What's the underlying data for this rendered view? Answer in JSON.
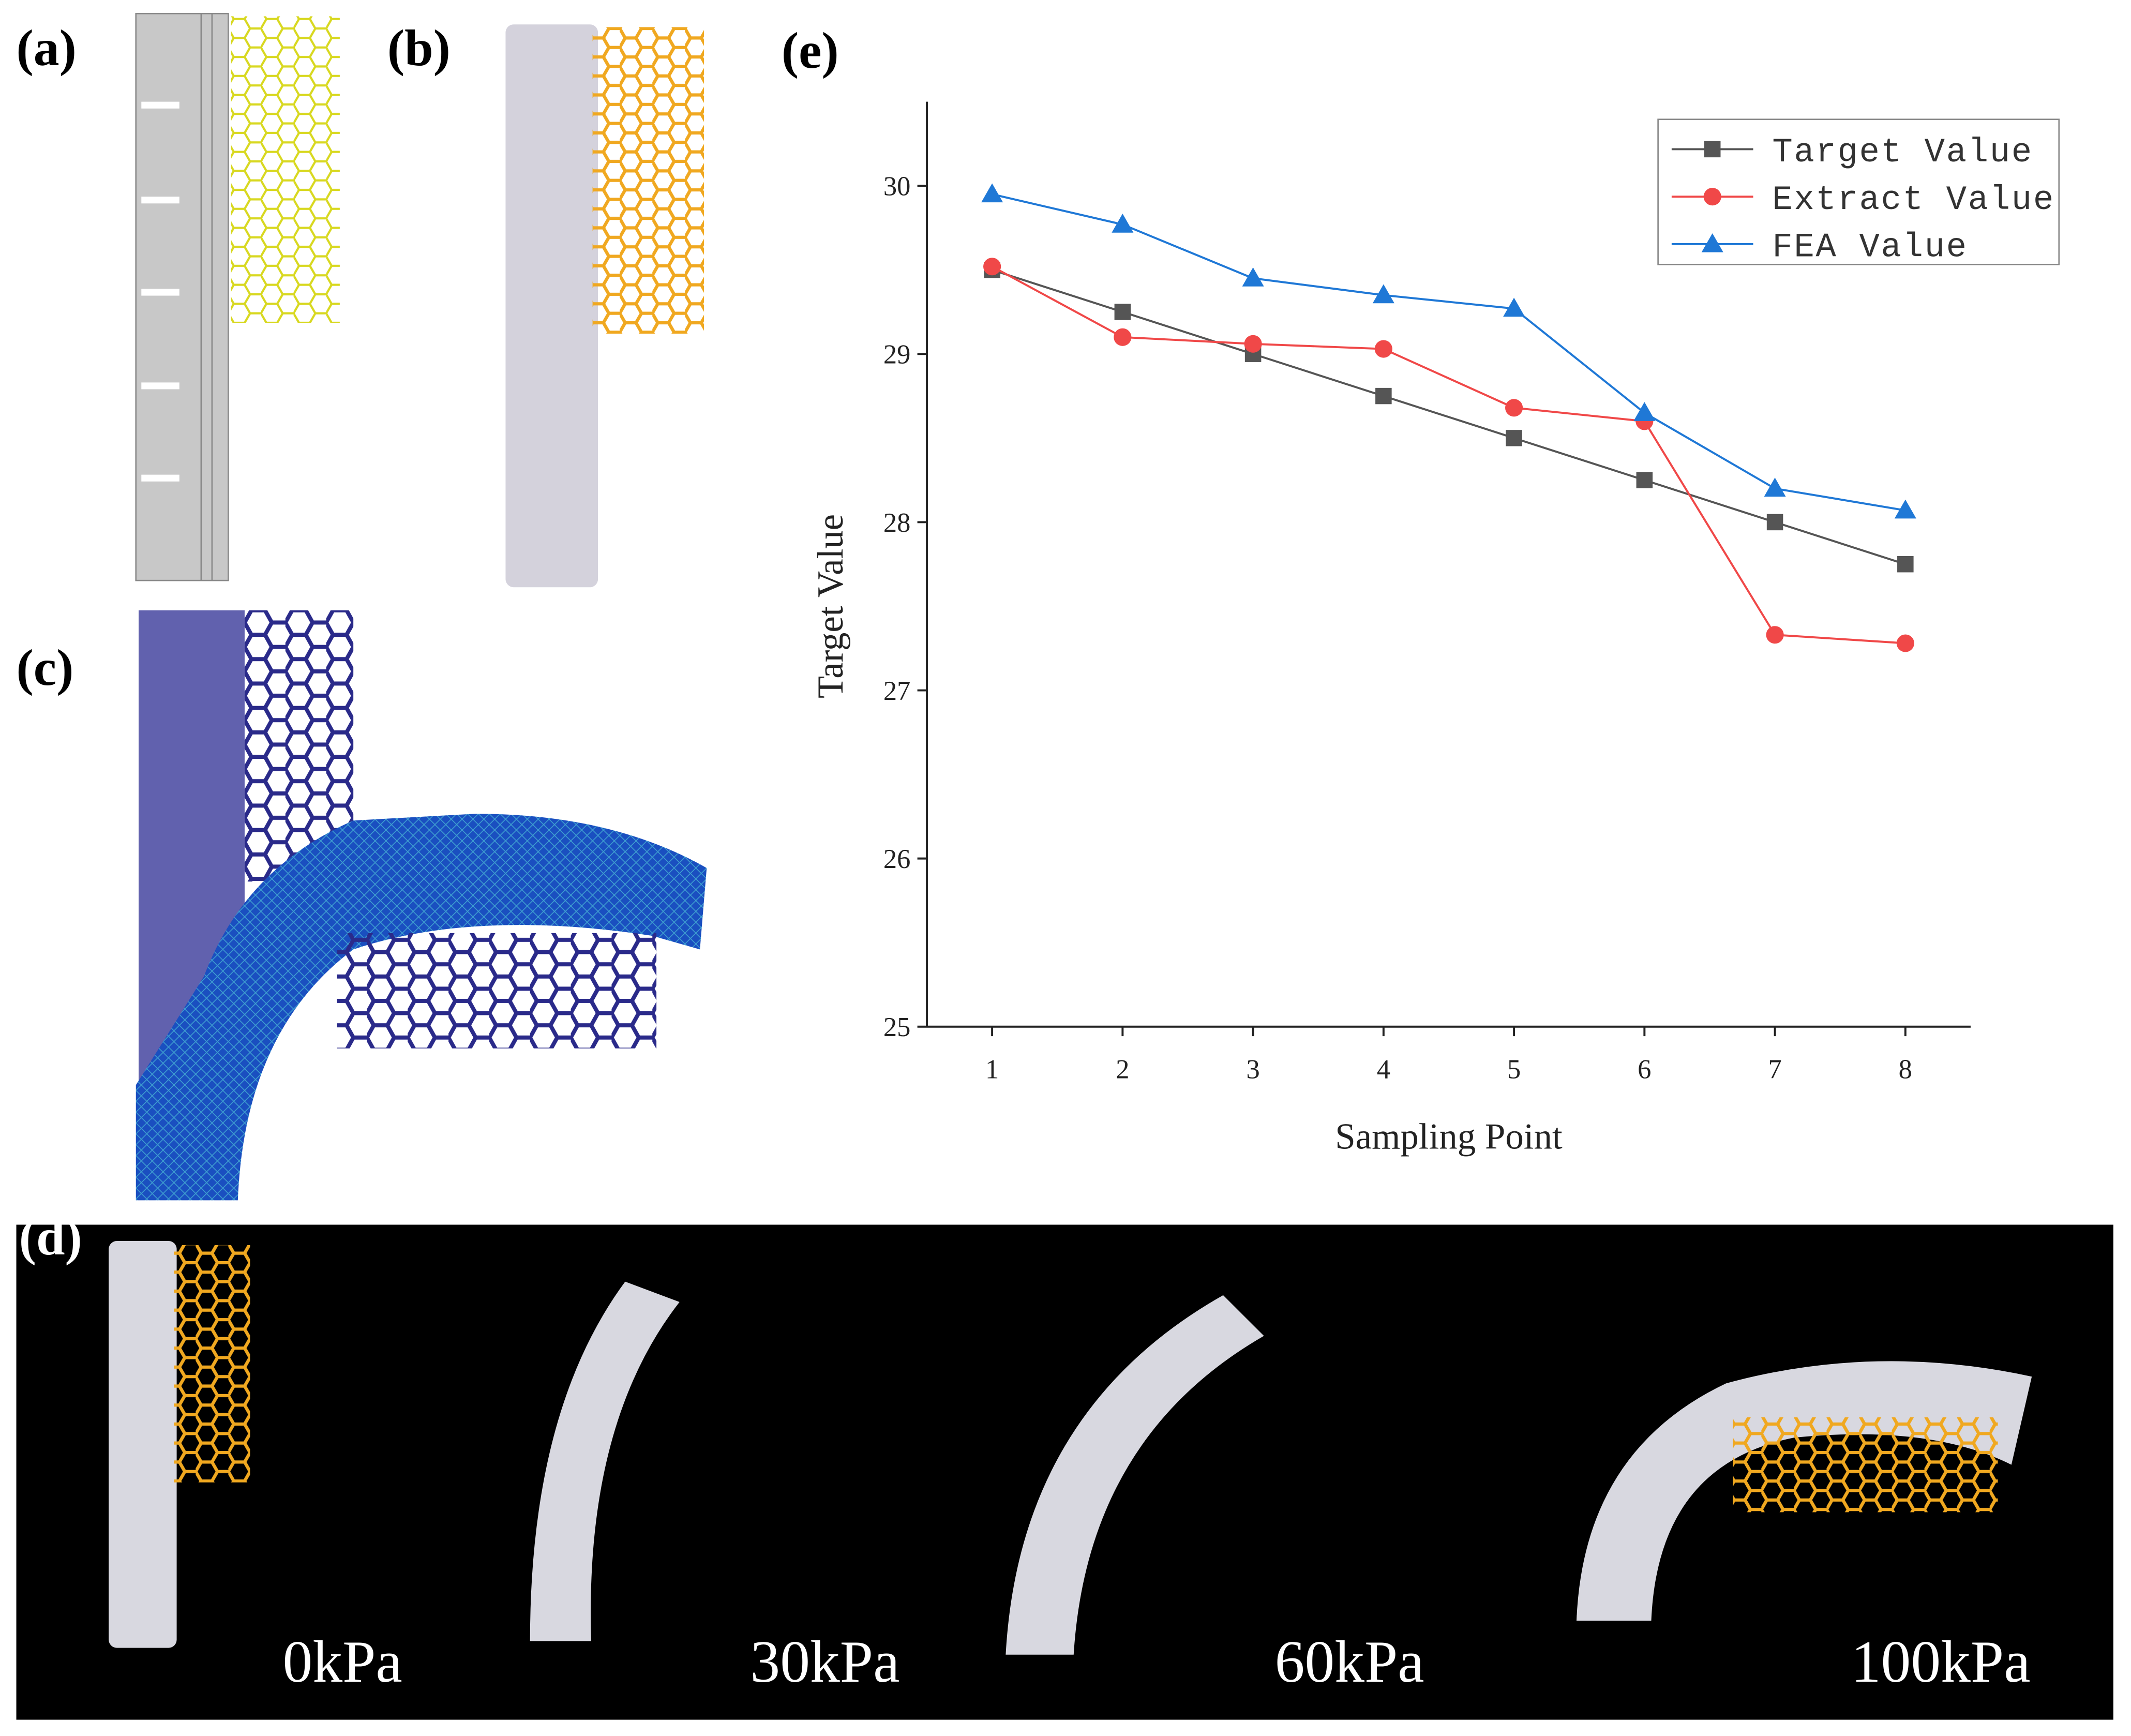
{
  "figure": {
    "panel_labels": [
      "(a)",
      "(b)",
      "(c)",
      "(d)",
      "(e)"
    ],
    "pressure_labels": [
      "0kPa",
      "30kPa",
      "60kPa",
      "100kPa"
    ]
  },
  "chart_data": {
    "type": "line",
    "x_label": "Sampling Point",
    "y_label": "Target Value",
    "x": [
      1,
      2,
      3,
      4,
      5,
      6,
      7,
      8
    ],
    "xlim": [
      0.5,
      8.5
    ],
    "xticks": [
      1,
      2,
      3,
      4,
      5,
      6,
      7,
      8
    ],
    "ylim": [
      25,
      30.5
    ],
    "yticks": [
      25,
      26,
      27,
      28,
      29,
      30
    ],
    "legend": "upper right",
    "series": [
      {
        "name": "Target Value",
        "color": "#555555",
        "marker": "square",
        "values": [
          29.5,
          29.25,
          29.0,
          28.75,
          28.5,
          28.25,
          28.0,
          27.75
        ]
      },
      {
        "name": "Extract Value",
        "color": "#f04848",
        "marker": "circle",
        "values": [
          29.52,
          29.1,
          29.06,
          29.03,
          28.68,
          28.6,
          27.33,
          27.28
        ]
      },
      {
        "name": "FEA Value",
        "color": "#1f78d6",
        "marker": "triangle",
        "values": [
          29.95,
          29.77,
          29.45,
          29.35,
          29.27,
          28.65,
          28.2,
          28.07
        ]
      }
    ]
  }
}
